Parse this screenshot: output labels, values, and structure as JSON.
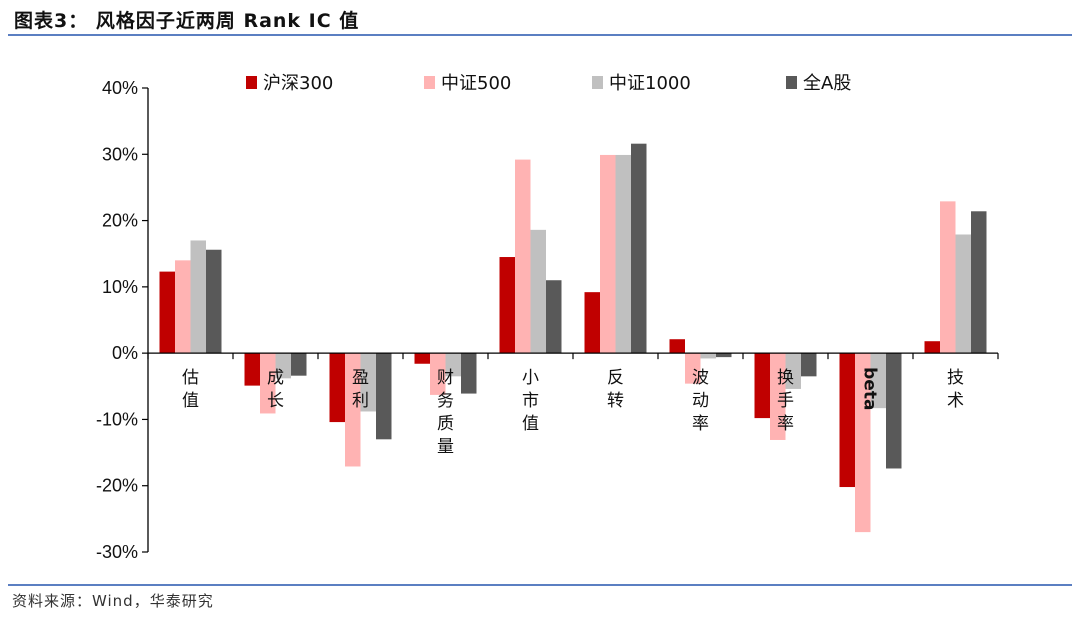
{
  "header": {
    "title": "图表3： 风格因子近两周 Rank IC 值"
  },
  "footer": {
    "source": "资料来源：Wind，华泰研究"
  },
  "chart_data": {
    "type": "bar",
    "title": "风格因子近两周 Rank IC 值",
    "xlabel": "",
    "ylabel": "",
    "ylim": [
      -30,
      40
    ],
    "yticks": [
      40,
      30,
      20,
      10,
      0,
      -10,
      -20,
      -30
    ],
    "ytick_labels": [
      "40%",
      "30%",
      "20%",
      "10%",
      "0%",
      "-10%",
      "-20%",
      "-30%"
    ],
    "legend_position": "top",
    "grid": false,
    "categories": [
      "估值",
      "成长",
      "盈利",
      "财务质量",
      "小市值",
      "反转",
      "波动率",
      "换手率",
      "beta",
      "技术"
    ],
    "series": [
      {
        "name": "沪深300",
        "color": "#c00000",
        "values": [
          12.3,
          -4.9,
          -10.4,
          -1.6,
          14.5,
          9.2,
          2.1,
          -9.8,
          -20.2,
          1.8
        ]
      },
      {
        "name": "中证500",
        "color": "#ffb3b3",
        "values": [
          14.0,
          -9.1,
          -17.1,
          -6.3,
          29.2,
          29.9,
          -4.6,
          -13.1,
          -27.0,
          22.9
        ]
      },
      {
        "name": "中证1000",
        "color": "#c0c0c0",
        "values": [
          17.0,
          -3.8,
          -8.8,
          -3.5,
          18.6,
          29.9,
          -0.8,
          -5.4,
          -8.3,
          17.9
        ]
      },
      {
        "name": "全A股",
        "color": "#595959",
        "values": [
          15.6,
          -3.4,
          -13.0,
          -6.1,
          11.0,
          31.6,
          -0.6,
          -3.5,
          -17.4,
          21.4
        ]
      }
    ]
  }
}
